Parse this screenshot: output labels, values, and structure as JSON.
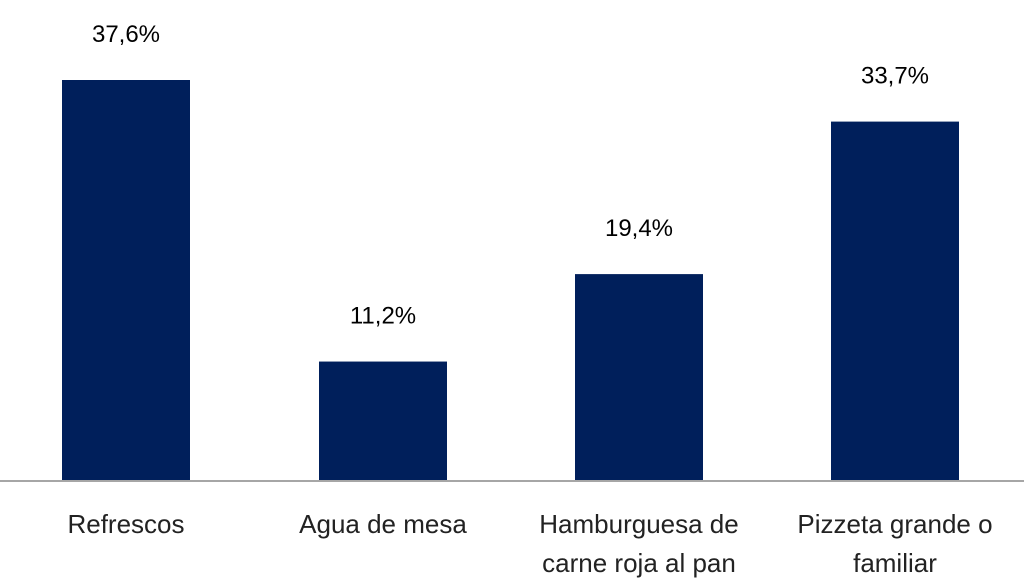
{
  "chart_data": {
    "type": "bar",
    "categories": [
      [
        "Refrescos"
      ],
      [
        "Agua de mesa"
      ],
      [
        "Hamburguesa de",
        "carne roja al pan"
      ],
      [
        "Pizzeta grande o",
        "familiar"
      ]
    ],
    "values": [
      37.6,
      11.2,
      19.4,
      33.7
    ],
    "data_labels": [
      "37,6%",
      "11,2%",
      "19,4%",
      "33,7%"
    ],
    "title": "",
    "xlabel": "",
    "ylabel": "",
    "ylim": [
      0,
      40
    ],
    "grid": false,
    "legend": "none",
    "bar_color": "#001F5B",
    "axis_color": "#A6A6A6"
  }
}
